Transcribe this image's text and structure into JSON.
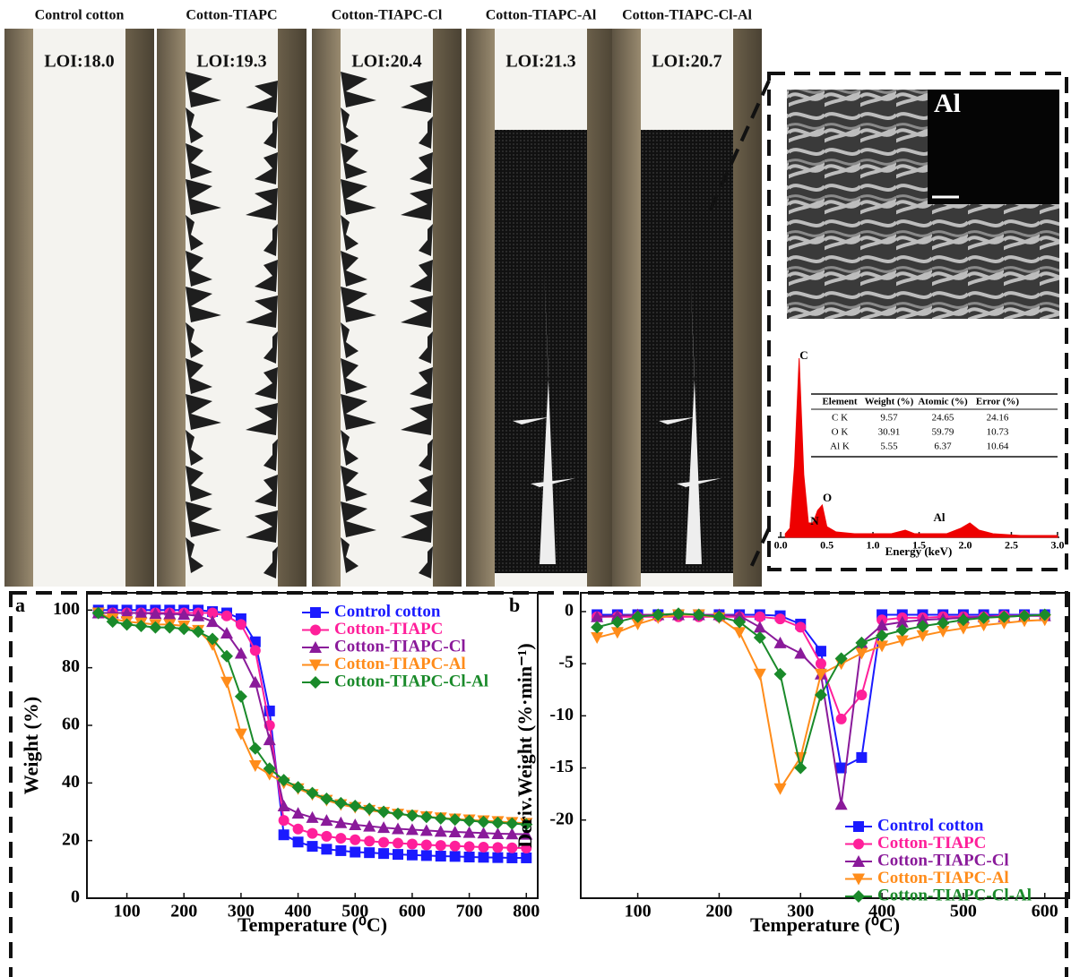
{
  "photos": [
    {
      "title": "Control cotton",
      "loi": "LOI:18.0"
    },
    {
      "title": "Cotton-TIAPC",
      "loi": "LOI:19.3"
    },
    {
      "title": "Cotton-TIAPC-Cl",
      "loi": "LOI:20.4"
    },
    {
      "title": "Cotton-TIAPC-Al",
      "loi": "LOI:21.3"
    },
    {
      "title": "Cotton-TIAPC-Cl-Al",
      "loi": "LOI:20.7"
    }
  ],
  "sem": {
    "label": "Al"
  },
  "eds_table": {
    "header": [
      "Element",
      "Weight (%)",
      "Atomic (%)",
      "Error (%)"
    ],
    "rows": [
      [
        "C K",
        "9.57",
        "24.65",
        "24.16"
      ],
      [
        "O K",
        "30.91",
        "59.79",
        "10.73"
      ],
      [
        "Al K",
        "5.55",
        "6.37",
        "10.64"
      ]
    ]
  },
  "chart_data": [
    {
      "type": "area",
      "color": "#ee0000",
      "xlabel": "Energy (keV)",
      "x": [
        0.05,
        0.1,
        0.15,
        0.2,
        0.25,
        0.3,
        0.35,
        0.4,
        0.45,
        0.5,
        0.6,
        0.8,
        1.0,
        1.2,
        1.35,
        1.45,
        1.6,
        1.8,
        1.95,
        2.05,
        2.15,
        2.3,
        2.6,
        3.0
      ],
      "values": [
        2,
        5,
        40,
        100,
        35,
        8,
        8,
        15,
        18,
        6,
        3,
        2,
        2,
        2,
        4,
        2,
        2,
        2,
        5,
        8,
        4,
        2,
        1,
        1
      ],
      "xlim": [
        -0.03,
        3.02
      ],
      "ylim": [
        0,
        105
      ],
      "xticks": [
        {
          "value": 0,
          "label": "0.0"
        },
        0.5,
        {
          "value": 1,
          "label": "1.0"
        },
        1.5,
        {
          "value": 2,
          "label": "2.0"
        },
        2.5,
        {
          "value": 3,
          "label": "3.0"
        }
      ],
      "annotations": [
        "C",
        "N",
        "O",
        "Al"
      ]
    },
    {
      "type": "line",
      "panel": "a",
      "xlabel": "Temperature (⁰C)",
      "ylabel": "Weight (%)",
      "legend": "upper right",
      "xlim": [
        30,
        820
      ],
      "ylim": [
        0,
        106
      ],
      "xticks": [
        100,
        200,
        300,
        400,
        500,
        600,
        700,
        800
      ],
      "yticks": [
        0,
        20,
        40,
        60,
        80,
        100
      ],
      "x": [
        50,
        75,
        100,
        125,
        150,
        175,
        200,
        225,
        250,
        275,
        300,
        325,
        350,
        375,
        400,
        425,
        450,
        475,
        500,
        525,
        550,
        575,
        600,
        625,
        650,
        675,
        700,
        725,
        750,
        775,
        800
      ],
      "series": [
        {
          "name": "Control cotton",
          "color": "#1a1aff",
          "marker": "square",
          "values": [
            100,
            100,
            100,
            100,
            100,
            100,
            100,
            100,
            99.5,
            99,
            97,
            89,
            65,
            22,
            19.5,
            18,
            17,
            16.5,
            16,
            15.8,
            15.5,
            15.2,
            15,
            14.8,
            14.6,
            14.5,
            14.3,
            14.2,
            14.1,
            14,
            14
          ]
        },
        {
          "name": "Cotton-TIAPC",
          "color": "#ff1f9a",
          "marker": "circle",
          "values": [
            99,
            99,
            99,
            99,
            99,
            99,
            99,
            99,
            99,
            98,
            95,
            86,
            60,
            27,
            24,
            22.5,
            21.5,
            20.8,
            20.3,
            19.8,
            19.4,
            19.1,
            18.8,
            18.5,
            18.3,
            18.1,
            17.9,
            17.7,
            17.6,
            17.5,
            17.4
          ]
        },
        {
          "name": "Cotton-TIAPC-Cl",
          "color": "#8a1a9a",
          "marker": "triup",
          "values": [
            99,
            99,
            99,
            99,
            98.8,
            98.7,
            98.5,
            98,
            96,
            92,
            85,
            75,
            55,
            32,
            29.5,
            28,
            27,
            26.2,
            25.5,
            25,
            24.5,
            24.1,
            23.8,
            23.5,
            23.2,
            23,
            22.8,
            22.6,
            22.4,
            22.3,
            22.2
          ]
        },
        {
          "name": "Cotton-TIAPC-Al",
          "color": "#ff8c1a",
          "marker": "tridown",
          "values": [
            99,
            97,
            96,
            95.5,
            95,
            95,
            94.5,
            93,
            88,
            75,
            57,
            46,
            43,
            40,
            38,
            36,
            34,
            32.5,
            31.5,
            30.5,
            29.8,
            29.2,
            28.7,
            28.3,
            27.9,
            27.5,
            27.2,
            26.9,
            26.6,
            26.3,
            26
          ]
        },
        {
          "name": "Cotton-TIAPC-Cl-Al",
          "color": "#1a8a2a",
          "marker": "diamond",
          "values": [
            99,
            96,
            95,
            94.5,
            94,
            94,
            93.5,
            92.5,
            90,
            84,
            70,
            52,
            45,
            41,
            38.5,
            36.5,
            34.5,
            33,
            32,
            31,
            30,
            29.3,
            28.7,
            28.2,
            27.7,
            27.3,
            26.9,
            26.5,
            26.2,
            25.9,
            25.6
          ]
        }
      ]
    },
    {
      "type": "line",
      "panel": "b",
      "xlabel": "Temperature (⁰C)",
      "ylabel": "Deriv.Weight (%·min⁻¹)",
      "legend": "lower right",
      "xlim": [
        30,
        630
      ],
      "ylim": [
        -27.5,
        1.8
      ],
      "xticks": [
        100,
        200,
        300,
        400,
        500,
        600
      ],
      "yticks": [
        0,
        -5,
        -10,
        -15,
        -20
      ],
      "x": [
        50,
        75,
        100,
        125,
        150,
        175,
        200,
        225,
        250,
        275,
        300,
        325,
        350,
        375,
        400,
        425,
        450,
        475,
        500,
        525,
        550,
        575,
        600
      ],
      "series": [
        {
          "name": "Control cotton",
          "color": "#1a1aff",
          "marker": "square",
          "values": [
            -0.3,
            -0.3,
            -0.3,
            -0.3,
            -0.3,
            -0.3,
            -0.3,
            -0.3,
            -0.3,
            -0.4,
            -1.2,
            -3.8,
            -15,
            -14,
            -0.3,
            -0.3,
            -0.3,
            -0.3,
            -0.3,
            -0.3,
            -0.3,
            -0.3,
            -0.3
          ]
        },
        {
          "name": "Cotton-TIAPC",
          "color": "#ff1f9a",
          "marker": "circle",
          "values": [
            -0.5,
            -0.5,
            -0.5,
            -0.5,
            -0.5,
            -0.5,
            -0.5,
            -0.5,
            -0.5,
            -0.7,
            -1.5,
            -5,
            -10.3,
            -8,
            -0.8,
            -0.6,
            -0.6,
            -0.5,
            -0.5,
            -0.5,
            -0.4,
            -0.4,
            -0.4
          ]
        },
        {
          "name": "Cotton-TIAPC-Cl",
          "color": "#8a1a9a",
          "marker": "triup",
          "values": [
            -0.5,
            -0.4,
            -0.3,
            -0.3,
            -0.3,
            -0.3,
            -0.3,
            -0.4,
            -1.5,
            -3,
            -4,
            -6,
            -18.5,
            -3,
            -1.3,
            -1,
            -0.8,
            -0.7,
            -0.6,
            -0.5,
            -0.5,
            -0.4,
            -0.4
          ]
        },
        {
          "name": "Cotton-TIAPC-Al",
          "color": "#ff8c1a",
          "marker": "tridown",
          "values": [
            -2.5,
            -2,
            -1.2,
            -0.6,
            -0.3,
            -0.3,
            -0.6,
            -2,
            -6,
            -17,
            -14,
            -6,
            -5,
            -4,
            -3.3,
            -2.8,
            -2.3,
            -1.9,
            -1.6,
            -1.3,
            -1.1,
            -0.9,
            -0.8
          ]
        },
        {
          "name": "Cotton-TIAPC-Cl-Al",
          "color": "#1a8a2a",
          "marker": "diamond",
          "values": [
            -1.5,
            -1,
            -0.5,
            -0.3,
            -0.2,
            -0.3,
            -0.5,
            -1,
            -2.5,
            -6,
            -15,
            -8,
            -4.5,
            -3,
            -2.3,
            -1.8,
            -1.4,
            -1.1,
            -0.8,
            -0.6,
            -0.5,
            -0.4,
            -0.3
          ]
        }
      ]
    }
  ]
}
